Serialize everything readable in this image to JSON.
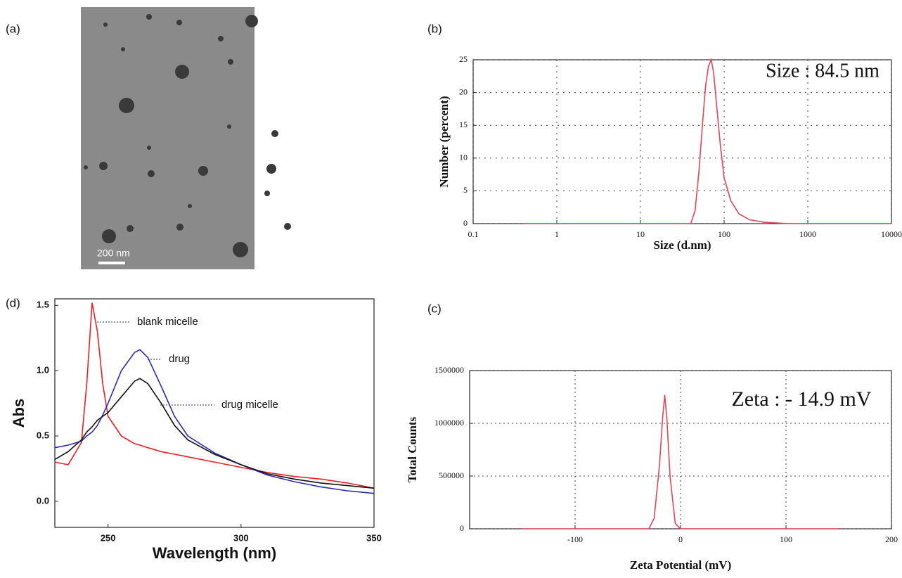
{
  "image_panel": {
    "label": "(a)",
    "scale_bar": "200 nm"
  },
  "chart_data": [
    {
      "type": "line",
      "label": "(b)",
      "annotation": "Size :  84.5 nm",
      "xlabel": "Size (d.nm)",
      "ylabel": "Number (percent)",
      "xscale": "log",
      "xlim": [
        0.1,
        10000
      ],
      "xticks": [
        0.1,
        1,
        10,
        100,
        1000,
        10000
      ],
      "ylim": [
        0,
        25
      ],
      "yticks": [
        0,
        5,
        10,
        15,
        20,
        25
      ],
      "grid": true,
      "x": [
        0.4,
        40,
        45,
        50,
        55,
        60,
        65,
        70,
        75,
        80,
        90,
        100,
        120,
        150,
        200,
        300,
        500,
        700,
        10000
      ],
      "series": [
        {
          "color": "#e0455a",
          "values": [
            0,
            0,
            2,
            8,
            15,
            21,
            24,
            25,
            23,
            19,
            12,
            7,
            3.5,
            1.5,
            0.6,
            0.2,
            0.05,
            0,
            0
          ]
        }
      ]
    },
    {
      "type": "line",
      "label": "(d)",
      "xlabel": "Wavelength (nm)",
      "ylabel": "Abs",
      "xlim": [
        230,
        350
      ],
      "xticks": [
        250,
        300,
        350
      ],
      "ylim": [
        -0.2,
        1.55
      ],
      "yticks": [
        {
          "value": 0,
          "label": "0.0"
        },
        0.5,
        {
          "value": 1,
          "label": "1.0"
        },
        1.5
      ],
      "grid": false,
      "x": [
        230,
        235,
        240,
        242,
        244,
        246,
        248,
        250,
        255,
        260,
        262,
        265,
        270,
        275,
        280,
        290,
        300,
        310,
        320,
        330,
        340,
        350
      ],
      "series": [
        {
          "name": "blank micelle",
          "color": "#ee1c25",
          "values": [
            0.3,
            0.28,
            0.45,
            0.9,
            1.52,
            1.3,
            0.9,
            0.65,
            0.5,
            0.44,
            0.43,
            0.41,
            0.38,
            0.36,
            0.34,
            0.3,
            0.26,
            0.22,
            0.19,
            0.17,
            0.14,
            0.1
          ]
        },
        {
          "name": "drug",
          "color": "#2b2bb0",
          "values": [
            0.41,
            0.43,
            0.46,
            0.5,
            0.53,
            0.58,
            0.66,
            0.75,
            1.0,
            1.14,
            1.16,
            1.1,
            0.88,
            0.65,
            0.5,
            0.37,
            0.28,
            0.2,
            0.15,
            0.11,
            0.08,
            0.06
          ]
        },
        {
          "name": "drug micelle",
          "color": "#111111",
          "values": [
            0.32,
            0.38,
            0.47,
            0.53,
            0.57,
            0.62,
            0.65,
            0.68,
            0.8,
            0.92,
            0.94,
            0.9,
            0.75,
            0.58,
            0.47,
            0.36,
            0.28,
            0.21,
            0.17,
            0.14,
            0.12,
            0.1
          ]
        }
      ]
    },
    {
      "type": "line",
      "label": "(c)",
      "annotation": "Zeta :  - 14.9 mV",
      "xlabel": "Zeta Potential (mV)",
      "ylabel": "Total Counts",
      "xlim": [
        -200,
        200
      ],
      "xticks": [
        -100,
        0,
        100,
        200
      ],
      "ylim": [
        0,
        1500000
      ],
      "yticks": [
        0,
        500000,
        1000000,
        1500000
      ],
      "grid": true,
      "x": [
        -150,
        -30,
        -25,
        -20,
        -17,
        -15,
        -13,
        -10,
        -5,
        0,
        150
      ],
      "series": [
        {
          "color": "#e0455a",
          "values": [
            0,
            0,
            100000,
            600000,
            1050000,
            1270000,
            1050000,
            500000,
            50000,
            0,
            0
          ]
        }
      ]
    }
  ]
}
